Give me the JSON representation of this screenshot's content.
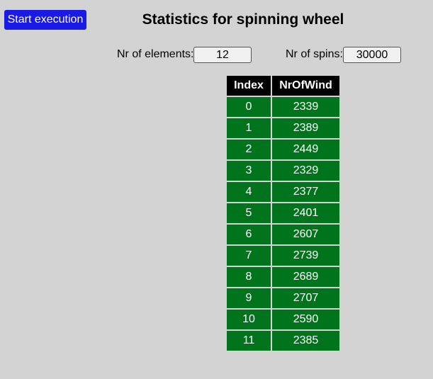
{
  "toolbar": {
    "start_label": "Start execution"
  },
  "page": {
    "title": "Statistics for spinning wheel"
  },
  "settings": {
    "elements_label": "Nr of elements:",
    "elements_value": "12",
    "spins_label": "Nr of spins:",
    "spins_value": "30000"
  },
  "table": {
    "headers": [
      "Index",
      "NrOfWind"
    ],
    "rows": [
      [
        "0",
        "2339"
      ],
      [
        "1",
        "2389"
      ],
      [
        "2",
        "2449"
      ],
      [
        "3",
        "2329"
      ],
      [
        "4",
        "2377"
      ],
      [
        "5",
        "2401"
      ],
      [
        "6",
        "2607"
      ],
      [
        "7",
        "2739"
      ],
      [
        "8",
        "2689"
      ],
      [
        "9",
        "2707"
      ],
      [
        "10",
        "2590"
      ],
      [
        "11",
        "2385"
      ]
    ]
  },
  "colors": {
    "background": "#d3d3d3",
    "button": "#1a1ae6",
    "header": "#000000",
    "cell": "#00741c"
  }
}
